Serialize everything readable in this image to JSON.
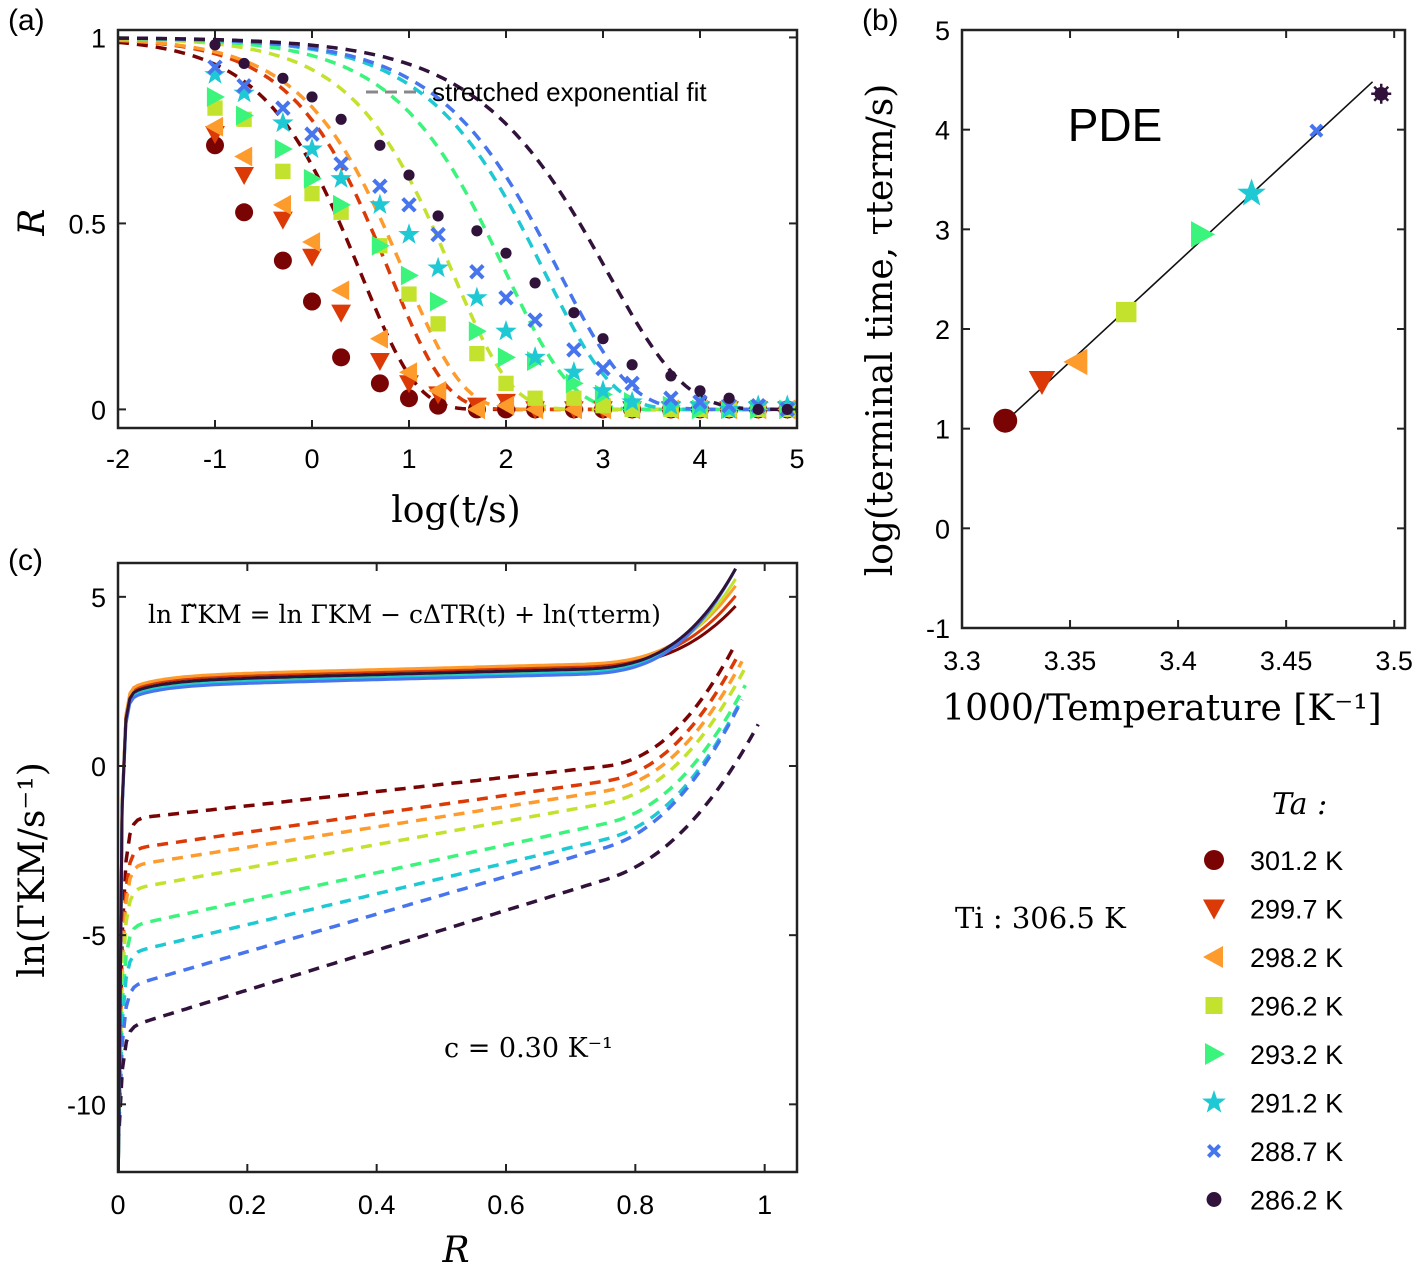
{
  "chart_data": [
    {
      "panel": "(a)",
      "type": "scatter",
      "title": "",
      "xlabel": "log(t/s)",
      "ylabel": "R",
      "xlim": [
        -2,
        5
      ],
      "ylim": [
        -0.05,
        1.02
      ],
      "xticks": [
        "-2",
        "-1",
        "0",
        "1",
        "2",
        "3",
        "4",
        "5"
      ],
      "yticks": [
        "0",
        "0.5",
        "1"
      ],
      "legend_text": "stretched exponential fit",
      "legend_position": "top-right",
      "fit_line_style": "dashed",
      "x": [
        -1.0,
        -0.7,
        -0.3,
        0.0,
        0.3,
        0.7,
        1.0,
        1.3,
        1.7,
        2.0,
        2.3,
        2.7,
        3.0,
        3.3,
        3.7,
        4.0,
        4.3,
        4.6,
        4.9
      ],
      "series": [
        {
          "name": "301.2 K",
          "color": "#7a0403",
          "marker": "circle",
          "tau": 0.5,
          "beta": 0.75,
          "values": [
            0.71,
            0.53,
            0.4,
            0.29,
            0.14,
            0.07,
            0.03,
            0.01,
            0.0,
            0.0,
            0.0,
            0.0,
            0.0,
            0.0,
            0.0,
            0.0,
            0.0,
            0.0,
            0.0
          ]
        },
        {
          "name": "299.7 K",
          "color": "#db3a07",
          "marker": "triangle-down",
          "tau": 0.8,
          "beta": 0.75,
          "values": [
            0.74,
            0.63,
            0.51,
            0.41,
            0.26,
            0.13,
            0.07,
            0.04,
            0.01,
            0.02,
            0.0,
            0.0,
            0.0,
            0.0,
            0.0,
            0.0,
            0.0,
            0.0,
            0.0
          ]
        },
        {
          "name": "298.2 K",
          "color": "#fe9b2d",
          "marker": "triangle-left",
          "tau": 0.95,
          "beta": 0.72,
          "values": [
            0.76,
            0.68,
            0.55,
            0.45,
            0.32,
            0.19,
            0.1,
            0.05,
            0.0,
            0.01,
            0.0,
            0.0,
            0.0,
            0.0,
            0.0,
            0.0,
            0.0,
            0.0,
            0.0
          ]
        },
        {
          "name": "296.2 K",
          "color": "#c2e22d",
          "marker": "square",
          "tau": 1.45,
          "beta": 0.72,
          "values": [
            0.81,
            0.78,
            0.64,
            0.58,
            0.53,
            0.44,
            0.31,
            0.23,
            0.15,
            0.07,
            0.03,
            0.03,
            0.01,
            0.0,
            0.0,
            0.0,
            0.0,
            0.0,
            0.0
          ]
        },
        {
          "name": "293.2 K",
          "color": "#3bf47c",
          "marker": "triangle-right",
          "tau": 2.0,
          "beta": 0.65,
          "values": [
            0.84,
            0.79,
            0.7,
            0.62,
            0.55,
            0.44,
            0.36,
            0.29,
            0.21,
            0.14,
            0.13,
            0.07,
            0.04,
            0.02,
            0.01,
            0.0,
            0.0,
            0.0,
            0.0
          ]
        },
        {
          "name": "291.2 K",
          "color": "#1ec9d3",
          "marker": "star",
          "tau": 2.4,
          "beta": 0.62,
          "values": [
            0.9,
            0.85,
            0.77,
            0.7,
            0.62,
            0.55,
            0.47,
            0.38,
            0.3,
            0.21,
            0.14,
            0.1,
            0.05,
            0.02,
            0.01,
            0.01,
            0.0,
            0.01,
            0.01
          ]
        },
        {
          "name": "288.7 K",
          "color": "#4675ed",
          "marker": "x",
          "tau": 2.55,
          "beta": 0.6,
          "values": [
            0.92,
            0.87,
            0.81,
            0.74,
            0.66,
            0.6,
            0.55,
            0.47,
            0.37,
            0.3,
            0.24,
            0.16,
            0.11,
            0.07,
            0.03,
            0.02,
            0.01,
            0.01,
            0.0
          ]
        },
        {
          "name": "286.2 K",
          "color": "#30123b",
          "marker": "circle-small",
          "tau": 3.05,
          "beta": 0.55,
          "values": [
            0.98,
            0.93,
            0.89,
            0.84,
            0.78,
            0.71,
            0.63,
            0.52,
            0.48,
            0.42,
            0.34,
            0.26,
            0.19,
            0.12,
            0.09,
            0.05,
            0.03,
            0.0,
            0.0
          ]
        }
      ]
    },
    {
      "panel": "(b)",
      "type": "scatter",
      "annotation": "PDE",
      "xlabel": "1000/Temperature [K⁻¹]",
      "ylabel": "log(terminal time, τterm/s)",
      "xlim": [
        3.3,
        3.505
      ],
      "ylim": [
        -1,
        5
      ],
      "xticks": [
        "3.3",
        "3.35",
        "3.4",
        "3.45",
        "3.5"
      ],
      "yticks": [
        "-1",
        "0",
        "1",
        "2",
        "3",
        "4",
        "5"
      ],
      "fit_line": {
        "x": [
          3.32,
          3.49
        ],
        "y": [
          1.07,
          4.48
        ]
      },
      "points": [
        {
          "name": "301.2 K",
          "x": 3.32,
          "y": 1.08
        },
        {
          "name": "299.7 K",
          "x": 3.337,
          "y": 1.47
        },
        {
          "name": "298.2 K",
          "x": 3.353,
          "y": 1.67
        },
        {
          "name": "296.2 K",
          "x": 3.376,
          "y": 2.17
        },
        {
          "name": "293.2 K",
          "x": 3.411,
          "y": 2.95
        },
        {
          "name": "291.2 K",
          "x": 3.434,
          "y": 3.36
        },
        {
          "name": "288.7 K",
          "x": 3.464,
          "y": 3.99
        },
        {
          "name": "286.2 K",
          "x": 3.494,
          "y": 4.36
        }
      ]
    },
    {
      "panel": "(c)",
      "type": "line",
      "xlabel": "R",
      "ylabel": "ln(ΓKM/s⁻¹)",
      "xlim": [
        0,
        1.05
      ],
      "ylim": [
        -12,
        6
      ],
      "xticks": [
        "0",
        "0.2",
        "0.4",
        "0.6",
        "0.8",
        "1"
      ],
      "yticks": [
        "-10",
        "-5",
        "0",
        "5"
      ],
      "equation": "ln Γ̃KM = ln ΓKM − cΔTR(t) + ln(τterm)",
      "c_label": "c = 0.30 K⁻¹",
      "dashed_series": [
        {
          "name": "301.2 K",
          "start": -1.6,
          "end": 0.3,
          "rmax": 0.955
        },
        {
          "name": "299.7 K",
          "start": -2.5,
          "end": -0.05,
          "rmax": 0.96
        },
        {
          "name": "298.2 K",
          "start": -3.0,
          "end": -0.3,
          "rmax": 0.965
        },
        {
          "name": "296.2 K",
          "start": -3.7,
          "end": -0.6,
          "rmax": 0.968
        },
        {
          "name": "293.2 K",
          "start": -4.8,
          "end": -1.1,
          "rmax": 0.97
        },
        {
          "name": "291.2 K",
          "start": -5.6,
          "end": -1.5,
          "rmax": 0.965
        },
        {
          "name": "288.7 K",
          "start": -6.6,
          "end": -1.6,
          "rmax": 0.965
        },
        {
          "name": "286.2 K",
          "start": -7.8,
          "end": -2.5,
          "rmax": 0.99
        }
      ],
      "solid_series": [
        {
          "name": "301.2 K",
          "plateau": 2.7,
          "end": 4.9
        },
        {
          "name": "299.7 K",
          "plateau": 2.75,
          "end": 5.2
        },
        {
          "name": "298.2 K",
          "plateau": 2.8,
          "end": 5.5
        },
        {
          "name": "296.2 K",
          "plateau": 2.65,
          "end": 5.7
        },
        {
          "name": "293.2 K",
          "plateau": 2.6,
          "end": 6.0
        },
        {
          "name": "291.2 K",
          "plateau": 2.55,
          "end": 6.0
        },
        {
          "name": "288.7 K",
          "plateau": 2.5,
          "end": 6.0
        },
        {
          "name": "286.2 K",
          "plateau": 2.65,
          "end": 6.0
        }
      ]
    }
  ],
  "legend": {
    "ta_label": "Ta :",
    "ti_label": "Ti : 306.5 K",
    "entries": [
      "301.2 K",
      "299.7 K",
      "298.2 K",
      "296.2 K",
      "293.2 K",
      "291.2 K",
      "288.7 K",
      "286.2 K"
    ]
  }
}
